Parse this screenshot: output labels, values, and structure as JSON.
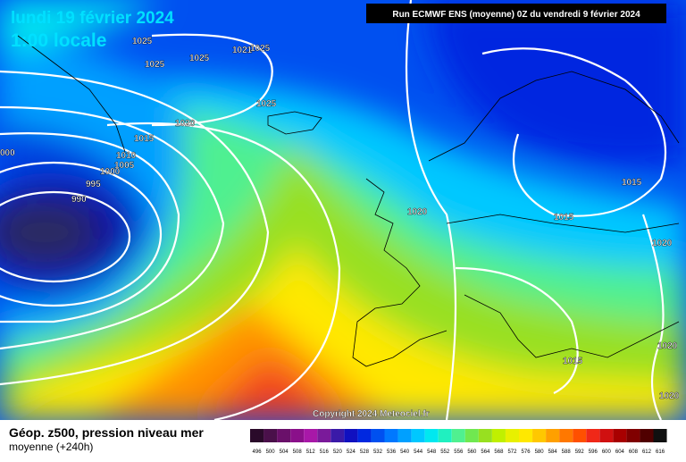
{
  "header": {
    "date": "lundi 19 février 2024",
    "time": "1:00 locale",
    "run": "Run ECMWF ENS (moyenne) 0Z du vendredi 9 février 2024"
  },
  "isobars": [
    "1025",
    "1025",
    "1025",
    "1021",
    "1025",
    "1025",
    "1020",
    "1015",
    "1010",
    "1005",
    "1000",
    "995",
    "990",
    "000",
    "1020",
    "1015",
    "1015",
    "1020",
    "1015",
    "1020",
    "1020"
  ],
  "copyright": "Copyright 2024 Meteociel.fr",
  "legend": {
    "title": "Géop. z500, pression niveau mer",
    "subtitle": "moyenne  (+240h)",
    "scale": [
      {
        "label": "496",
        "color": "#2a0a2a"
      },
      {
        "label": "500",
        "color": "#4a104a"
      },
      {
        "label": "504",
        "color": "#6a106a"
      },
      {
        "label": "508",
        "color": "#8a108a"
      },
      {
        "label": "512",
        "color": "#a818a8"
      },
      {
        "label": "516",
        "color": "#7a1a9a"
      },
      {
        "label": "520",
        "color": "#3a1aa8"
      },
      {
        "label": "524",
        "color": "#1010c0"
      },
      {
        "label": "528",
        "color": "#0028e0"
      },
      {
        "label": "532",
        "color": "#0050f0"
      },
      {
        "label": "536",
        "color": "#0078ff"
      },
      {
        "label": "540",
        "color": "#00a0ff"
      },
      {
        "label": "544",
        "color": "#00c8ff"
      },
      {
        "label": "548",
        "color": "#00e8f0"
      },
      {
        "label": "552",
        "color": "#20f0c0"
      },
      {
        "label": "556",
        "color": "#50f090"
      },
      {
        "label": "560",
        "color": "#70e850"
      },
      {
        "label": "564",
        "color": "#98e020"
      },
      {
        "label": "568",
        "color": "#c0f000"
      },
      {
        "label": "572",
        "color": "#e8f000"
      },
      {
        "label": "576",
        "color": "#ffe800"
      },
      {
        "label": "580",
        "color": "#ffc800"
      },
      {
        "label": "584",
        "color": "#ffa000"
      },
      {
        "label": "588",
        "color": "#ff7800"
      },
      {
        "label": "592",
        "color": "#ff5000"
      },
      {
        "label": "596",
        "color": "#f02818"
      },
      {
        "label": "600",
        "color": "#d01010"
      },
      {
        "label": "604",
        "color": "#a80000"
      },
      {
        "label": "608",
        "color": "#800000"
      },
      {
        "label": "612",
        "color": "#500000"
      },
      {
        "label": "616",
        "color": "#101010"
      }
    ]
  }
}
